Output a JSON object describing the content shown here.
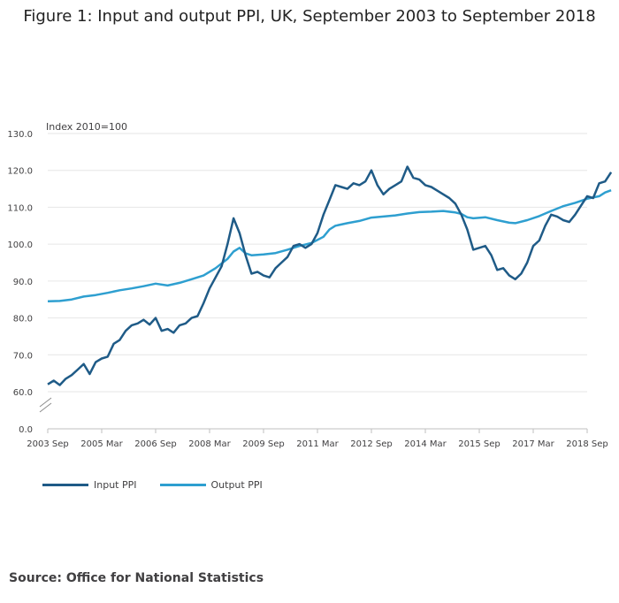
{
  "title": "Figure 1: Input and output PPI, UK, September 2003 to September 2018",
  "source": "Source: Office for National Statistics",
  "colors": {
    "input": "#1f5b87",
    "output": "#2e9fd0",
    "grid": "#e6e6e6",
    "axis": "#414042"
  },
  "chart_data": {
    "type": "line",
    "ylabel": "Index 2010=100",
    "ylim": [
      0,
      130
    ],
    "y_ticks": [
      "0.0",
      "60.0",
      "70.0",
      "80.0",
      "90.0",
      "100.0",
      "110.0",
      "120.0",
      "130.0"
    ],
    "y_axis_break": true,
    "x_ticks": [
      "2003 Sep",
      "2005 Mar",
      "2006 Sep",
      "2008 Mar",
      "2009 Sep",
      "2011 Mar",
      "2012 Sep",
      "2014 Mar",
      "2015 Sep",
      "2017 Mar",
      "2018 Sep"
    ],
    "grid": true,
    "legend_position": "bottom-left",
    "series": [
      {
        "name": "Input PPI",
        "color": "#1f5b87",
        "points": [
          [
            0,
            62
          ],
          [
            2,
            63
          ],
          [
            4,
            61.8
          ],
          [
            6,
            63.5
          ],
          [
            8,
            64.5
          ],
          [
            10,
            66
          ],
          [
            12,
            67.5
          ],
          [
            14,
            64.8
          ],
          [
            16,
            68
          ],
          [
            18,
            69
          ],
          [
            20,
            69.5
          ],
          [
            22,
            73
          ],
          [
            24,
            74
          ],
          [
            26,
            76.5
          ],
          [
            28,
            78
          ],
          [
            30,
            78.5
          ],
          [
            32,
            79.5
          ],
          [
            34,
            78.2
          ],
          [
            36,
            80
          ],
          [
            38,
            76.5
          ],
          [
            40,
            77
          ],
          [
            42,
            76
          ],
          [
            44,
            78
          ],
          [
            46,
            78.5
          ],
          [
            48,
            80
          ],
          [
            50,
            80.5
          ],
          [
            52,
            84
          ],
          [
            54,
            88
          ],
          [
            56,
            91
          ],
          [
            58,
            94
          ],
          [
            60,
            100
          ],
          [
            62,
            107
          ],
          [
            64,
            103
          ],
          [
            66,
            97
          ],
          [
            68,
            92
          ],
          [
            70,
            92.5
          ],
          [
            72,
            91.5
          ],
          [
            74,
            91
          ],
          [
            76,
            93.5
          ],
          [
            78,
            95
          ],
          [
            80,
            96.5
          ],
          [
            82,
            99.5
          ],
          [
            84,
            100
          ],
          [
            86,
            99
          ],
          [
            88,
            100
          ],
          [
            90,
            103
          ],
          [
            92,
            108
          ],
          [
            94,
            112
          ],
          [
            96,
            116
          ],
          [
            98,
            115.5
          ],
          [
            100,
            115
          ],
          [
            102,
            116.5
          ],
          [
            104,
            116
          ],
          [
            106,
            117
          ],
          [
            108,
            120
          ],
          [
            110,
            116
          ],
          [
            112,
            113.5
          ],
          [
            114,
            115
          ],
          [
            116,
            116
          ],
          [
            118,
            117
          ],
          [
            120,
            121
          ],
          [
            122,
            118
          ],
          [
            124,
            117.5
          ],
          [
            126,
            116
          ],
          [
            128,
            115.5
          ],
          [
            130,
            114.5
          ],
          [
            132,
            113.5
          ],
          [
            134,
            112.5
          ],
          [
            136,
            111
          ],
          [
            138,
            108
          ],
          [
            140,
            104
          ],
          [
            142,
            98.5
          ],
          [
            144,
            99
          ],
          [
            146,
            99.5
          ],
          [
            148,
            97
          ],
          [
            150,
            93
          ],
          [
            152,
            93.5
          ],
          [
            154,
            91.5
          ],
          [
            156,
            90.5
          ],
          [
            158,
            92
          ],
          [
            160,
            95
          ],
          [
            162,
            99.5
          ],
          [
            164,
            101
          ],
          [
            166,
            105
          ],
          [
            168,
            108
          ],
          [
            170,
            107.5
          ],
          [
            172,
            106.5
          ],
          [
            174,
            106
          ],
          [
            176,
            108
          ],
          [
            178,
            110.5
          ],
          [
            180,
            113
          ],
          [
            182,
            112.5
          ],
          [
            184,
            116.5
          ],
          [
            186,
            117
          ],
          [
            188,
            119.5
          ]
        ]
      },
      {
        "name": "Output PPI",
        "color": "#2e9fd0",
        "points": [
          [
            0,
            84.5
          ],
          [
            4,
            84.6
          ],
          [
            8,
            85
          ],
          [
            12,
            85.8
          ],
          [
            16,
            86.2
          ],
          [
            20,
            86.8
          ],
          [
            24,
            87.5
          ],
          [
            28,
            88
          ],
          [
            32,
            88.6
          ],
          [
            36,
            89.3
          ],
          [
            40,
            88.8
          ],
          [
            44,
            89.5
          ],
          [
            48,
            90.5
          ],
          [
            52,
            91.5
          ],
          [
            56,
            93.5
          ],
          [
            60,
            96
          ],
          [
            62,
            98
          ],
          [
            64,
            99
          ],
          [
            66,
            97.5
          ],
          [
            68,
            97
          ],
          [
            72,
            97.2
          ],
          [
            76,
            97.6
          ],
          [
            80,
            98.5
          ],
          [
            84,
            99.5
          ],
          [
            88,
            100.3
          ],
          [
            92,
            102
          ],
          [
            94,
            104
          ],
          [
            96,
            105
          ],
          [
            100,
            105.7
          ],
          [
            104,
            106.3
          ],
          [
            108,
            107.2
          ],
          [
            112,
            107.5
          ],
          [
            116,
            107.8
          ],
          [
            120,
            108.3
          ],
          [
            124,
            108.7
          ],
          [
            128,
            108.8
          ],
          [
            132,
            109
          ],
          [
            136,
            108.6
          ],
          [
            138,
            108.2
          ],
          [
            140,
            107.3
          ],
          [
            142,
            107
          ],
          [
            146,
            107.3
          ],
          [
            150,
            106.5
          ],
          [
            154,
            105.8
          ],
          [
            156,
            105.7
          ],
          [
            160,
            106.5
          ],
          [
            164,
            107.6
          ],
          [
            168,
            109
          ],
          [
            172,
            110.3
          ],
          [
            176,
            111.2
          ],
          [
            180,
            112.3
          ],
          [
            184,
            113
          ],
          [
            186,
            114
          ],
          [
            188,
            114.6
          ]
        ]
      }
    ]
  }
}
